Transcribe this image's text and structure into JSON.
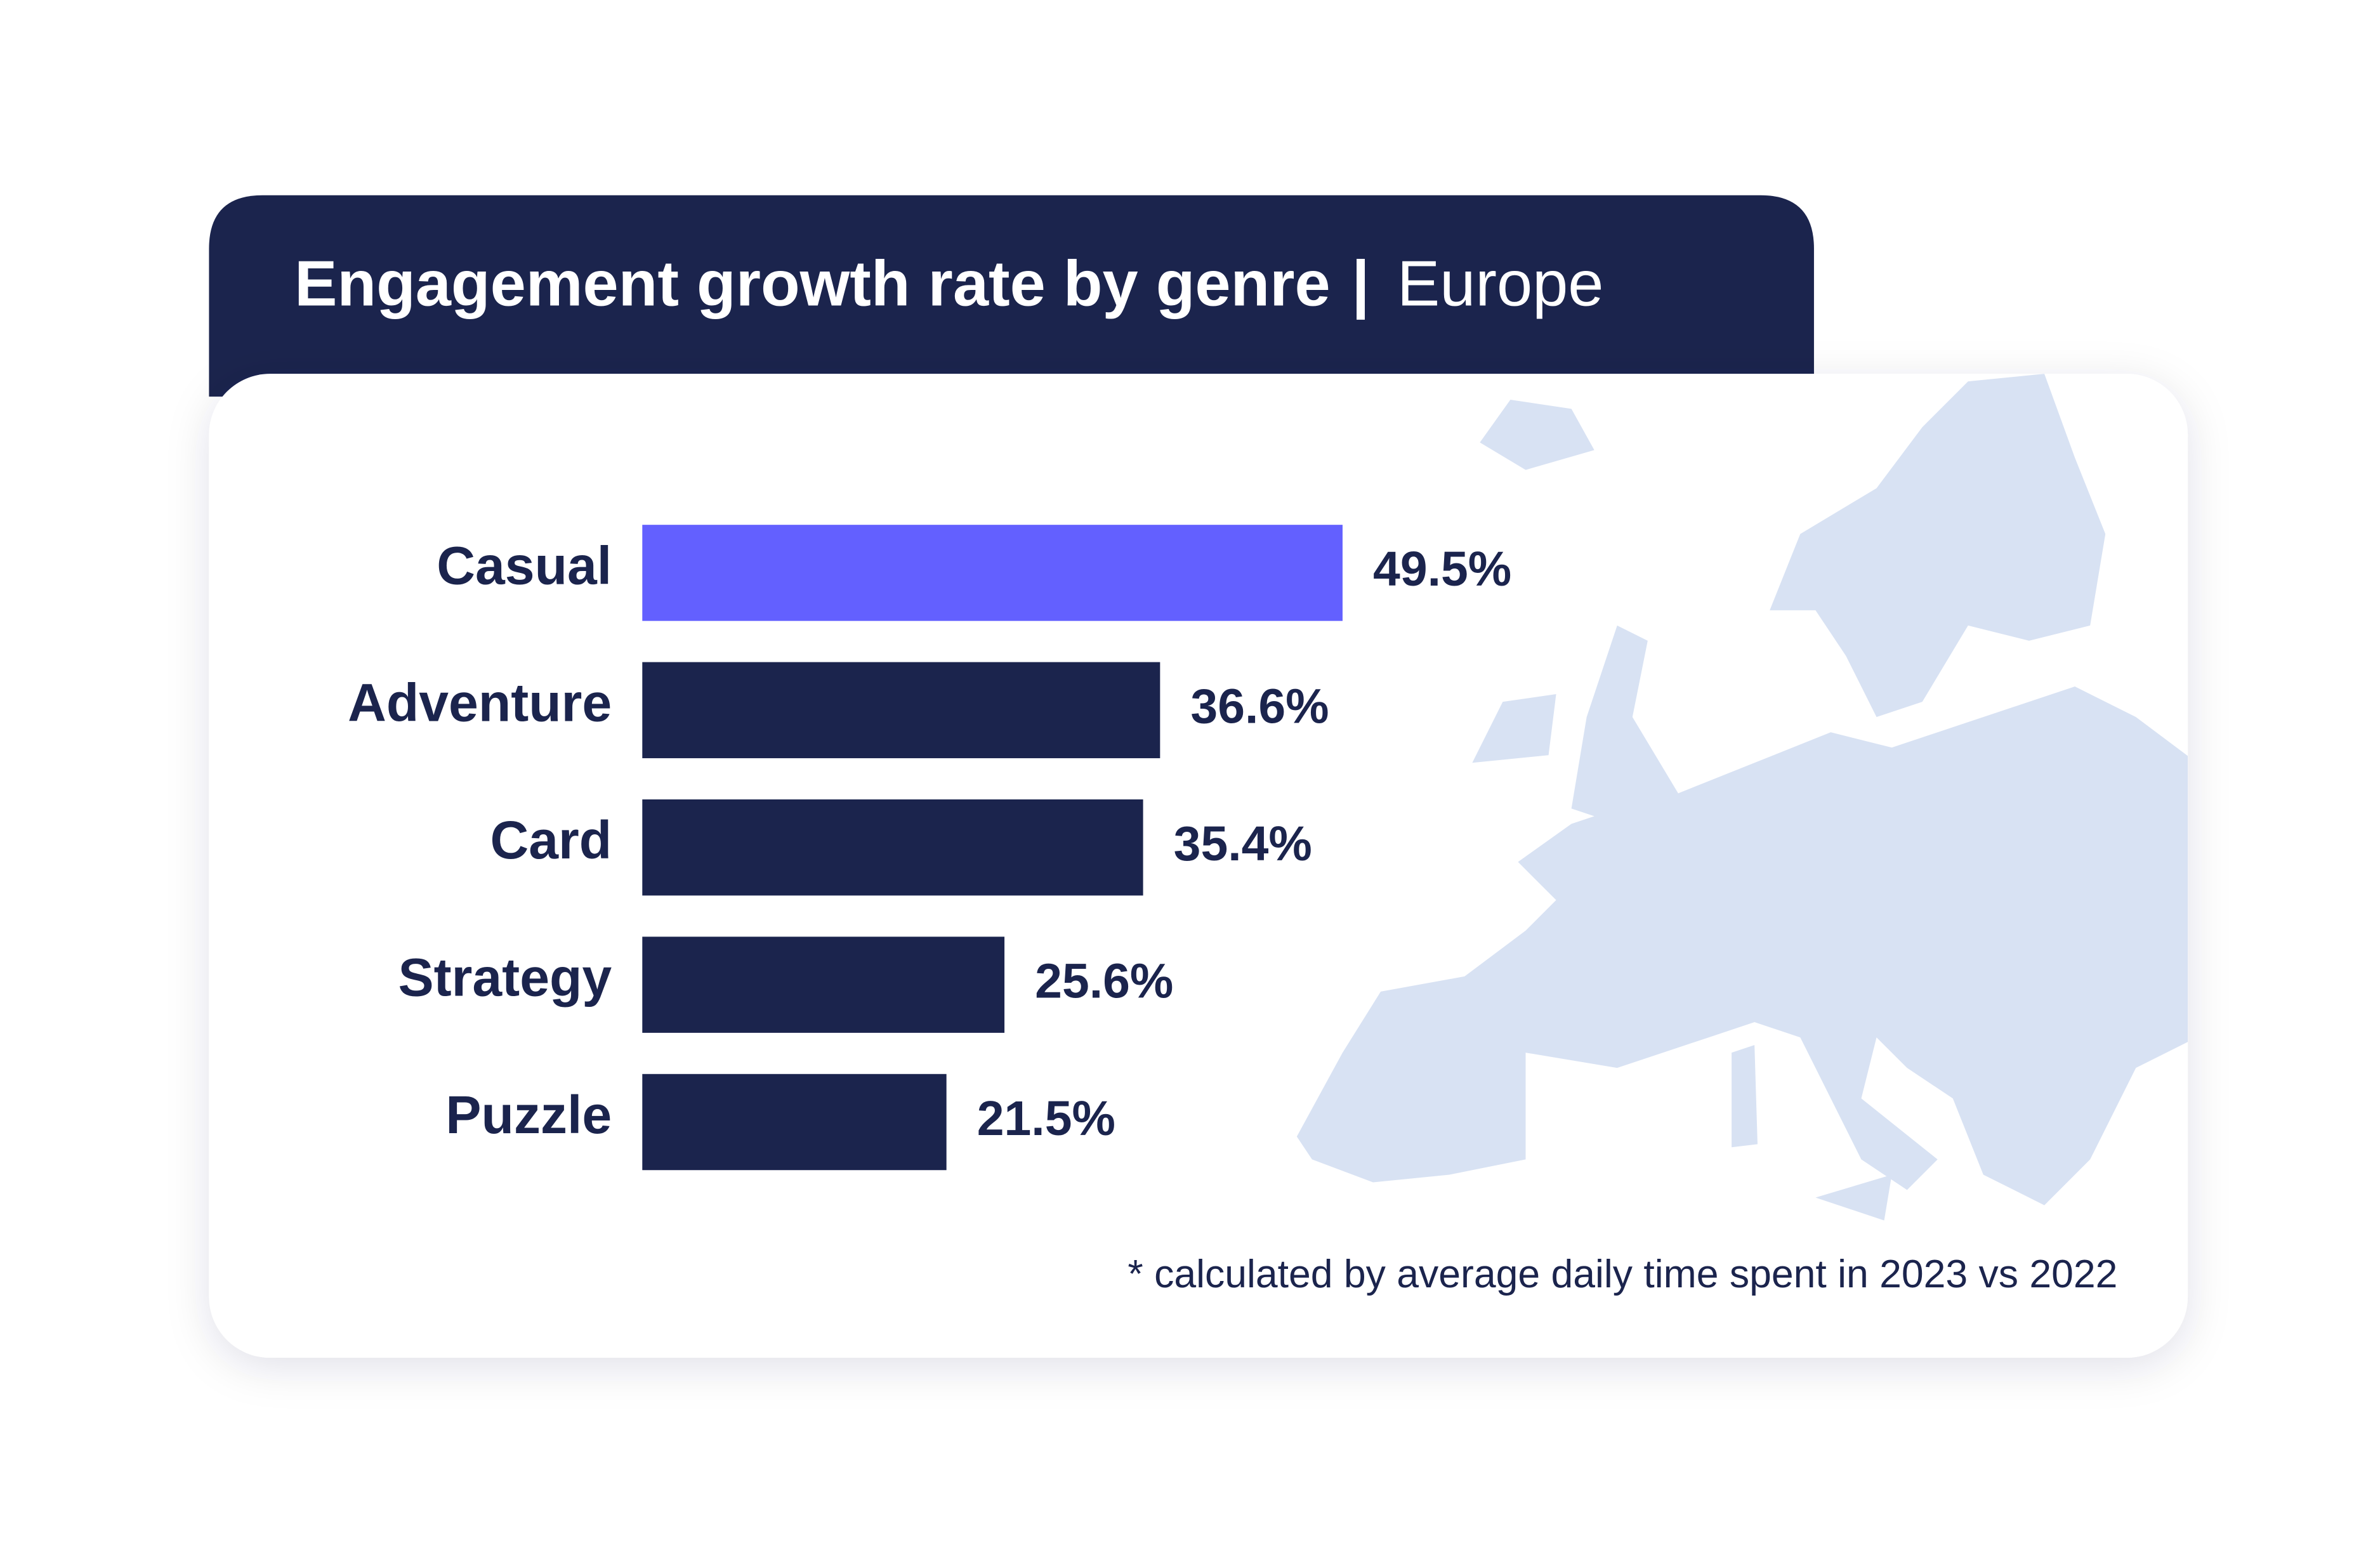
{
  "chart_data": {
    "type": "bar",
    "orientation": "horizontal",
    "title": "Engagement growth rate by genre",
    "title_separator": "|",
    "subtitle": "Europe",
    "categories": [
      "Casual",
      "Adventure",
      "Card",
      "Strategy",
      "Puzzle"
    ],
    "values": [
      49.5,
      36.6,
      35.4,
      25.6,
      21.5
    ],
    "value_labels": [
      "49.5%",
      "36.6%",
      "35.4%",
      "25.6%",
      "21.5%"
    ],
    "colors": [
      "#6360ff",
      "#1b244d",
      "#1b244d",
      "#1b244d",
      "#1b244d"
    ],
    "footnote": "* calculated by average daily time spent in 2023 vs 2022"
  }
}
